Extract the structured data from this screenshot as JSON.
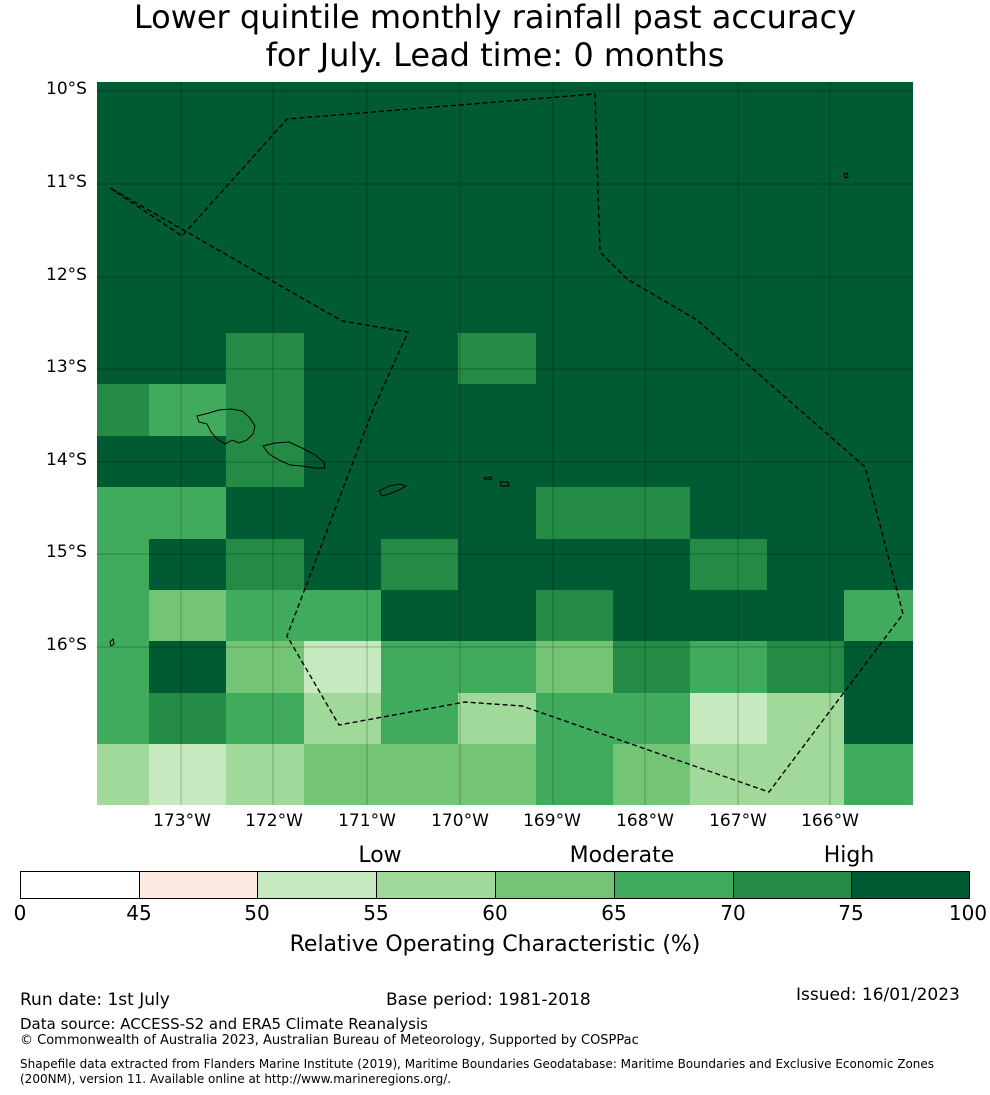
{
  "title_line1": "Lower quintile monthly rainfall past accuracy",
  "title_line2": "for July. Lead time: 0 months",
  "lat_labels": [
    "10°S",
    "11°S",
    "12°S",
    "13°S",
    "14°S",
    "15°S",
    "16°S"
  ],
  "lon_labels": [
    "173°W",
    "172°W",
    "171°W",
    "170°W",
    "169°W",
    "168°W",
    "167°W",
    "166°W"
  ],
  "legend": {
    "categories": [
      "Low",
      "Moderate",
      "High"
    ],
    "ticks": [
      "0",
      "45",
      "50",
      "55",
      "60",
      "65",
      "70",
      "75",
      "100"
    ],
    "colors": [
      "#ffffff",
      "#fdebe1",
      "#c7e9c0",
      "#a1d99b",
      "#74c476",
      "#41ab5d",
      "#238b45",
      "#005a32"
    ],
    "label": "Relative Operating Characteristic (%)"
  },
  "footer": {
    "run_date": "Run date: 1st July",
    "base_period": "Base period: 1981-2018",
    "issued": "Issued: 16/01/2023",
    "data_source": "Data source: ACCESS-S2 and ERA5 Climate Reanalysis",
    "copyright": "© Commonwealth of Australia 2023, Australian Bureau of Meteorology, Supported by COSPPac",
    "shapefile_1": "Shapefile data extracted from Flanders Marine Institute (2019), Maritime Boundaries Geodatabase: Maritime Boundaries and Exclusive Economic Zones",
    "shapefile_2": "(200NM), version 11. Available online at http://www.marineregions.org/."
  },
  "map_grid": [
    [
      7,
      7,
      7,
      7,
      7,
      7,
      7,
      7,
      7,
      7,
      7
    ],
    [
      7,
      7,
      7,
      7,
      7,
      7,
      7,
      7,
      7,
      7,
      7
    ],
    [
      7,
      7,
      7,
      7,
      7,
      7,
      7,
      7,
      7,
      7,
      7
    ],
    [
      7,
      7,
      7,
      7,
      7,
      7,
      7,
      7,
      7,
      7,
      7
    ],
    [
      7,
      7,
      7,
      7,
      7,
      7,
      7,
      7,
      7,
      7,
      7
    ],
    [
      7,
      7,
      6,
      7,
      7,
      6,
      7,
      7,
      7,
      7,
      7
    ],
    [
      6,
      5,
      6,
      7,
      7,
      7,
      7,
      7,
      7,
      7,
      7
    ],
    [
      7,
      7,
      6,
      7,
      7,
      7,
      7,
      7,
      7,
      7,
      7
    ],
    [
      5,
      5,
      7,
      7,
      7,
      7,
      6,
      6,
      7,
      7,
      7
    ],
    [
      5,
      7,
      6,
      7,
      6,
      7,
      7,
      7,
      6,
      7,
      7
    ],
    [
      5,
      4,
      5,
      5,
      7,
      7,
      6,
      7,
      7,
      7,
      5
    ],
    [
      5,
      7,
      4,
      2,
      5,
      5,
      4,
      6,
      5,
      6,
      7
    ],
    [
      5,
      6,
      5,
      3,
      5,
      3,
      5,
      5,
      2,
      3,
      7
    ],
    [
      3,
      2,
      3,
      4,
      4,
      4,
      5,
      4,
      3,
      3,
      5
    ]
  ]
}
